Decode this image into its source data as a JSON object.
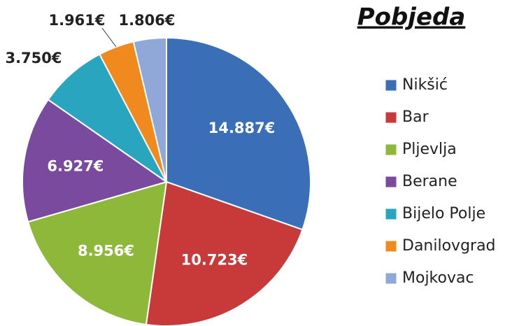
{
  "chart_data": {
    "type": "pie",
    "title": "Pobjeda",
    "categories": [
      "Nikšić",
      "Bar",
      "Pljevlja",
      "Berane",
      "Bijelo Polje",
      "Danilovgrad",
      "Mojkovac"
    ],
    "values": [
      14887,
      10723,
      8956,
      6927,
      3750,
      1961,
      1806
    ],
    "value_labels": [
      "14.887€",
      "10.723€",
      "8.956€",
      "6.927€",
      "3.750€",
      "1.961€",
      "1.806€"
    ],
    "colors": [
      "#3a6fb8",
      "#c83a3a",
      "#8db83a",
      "#7a4a9e",
      "#2aa5c0",
      "#f08a1e",
      "#8fa8d8"
    ],
    "legend": "right"
  }
}
